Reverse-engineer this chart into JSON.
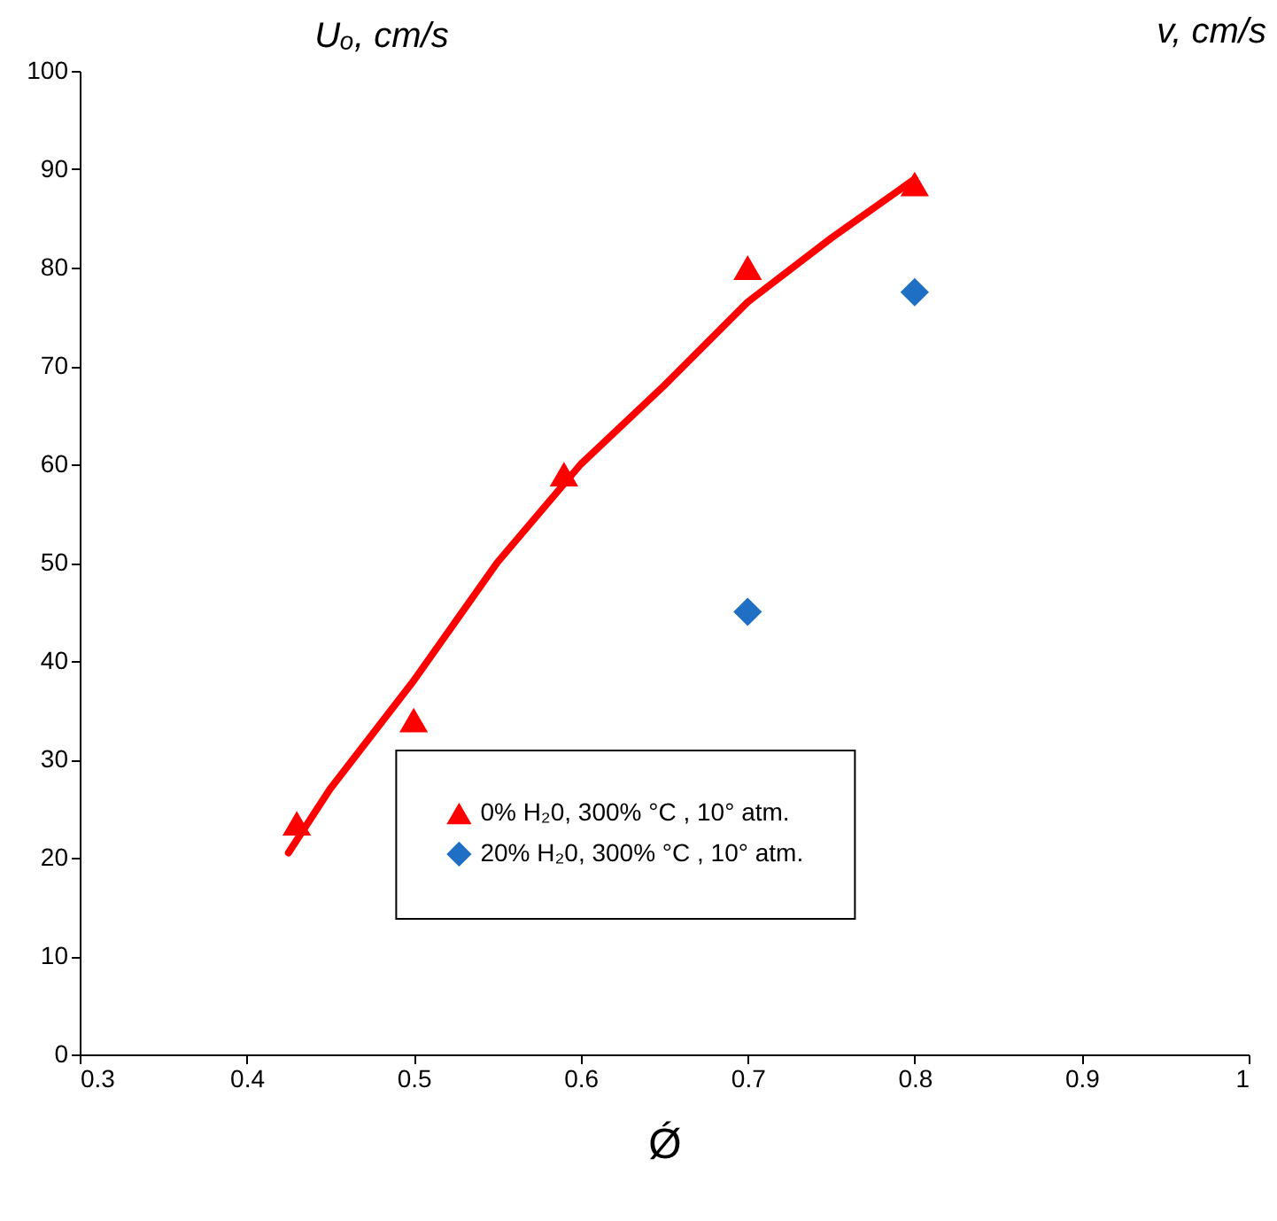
{
  "chart_data": {
    "type": "scatter",
    "ylabel": "Uₒ, cm/s",
    "xlabel": "Ǿ",
    "annotations": [
      "v, cm/s"
    ],
    "xlim": [
      0.3,
      1
    ],
    "xticks": [
      0.3,
      0.4,
      0.5,
      0.6,
      0.7,
      0.8,
      0.9,
      1
    ],
    "ylim": [
      0,
      100
    ],
    "yticks": [
      0,
      10,
      20,
      30,
      40,
      50,
      60,
      70,
      80,
      90,
      100
    ],
    "grid": false,
    "legend": "bottom right",
    "series": [
      {
        "name": "0% H₂0, 300% °C , 10° atm.",
        "marker": "triangle",
        "color": "#ff0000",
        "x": [
          0.43,
          0.5,
          0.59,
          0.7,
          0.8
        ],
        "values": [
          23.5,
          34,
          59,
          80,
          88.5
        ]
      },
      {
        "type": "line",
        "color": "#ff0000",
        "x": [
          0.425,
          0.45,
          0.5,
          0.55,
          0.6,
          0.65,
          0.7,
          0.75,
          0.8
        ],
        "values": [
          20.5,
          27,
          38,
          50,
          60,
          68,
          76.5,
          83,
          89
        ]
      },
      {
        "name": "20% H₂0, 300% °C , 10° atm.",
        "marker": "diamond",
        "color": "#1f6fc5",
        "x": [
          0.7,
          0.8
        ],
        "values": [
          45,
          77.5
        ]
      }
    ]
  }
}
